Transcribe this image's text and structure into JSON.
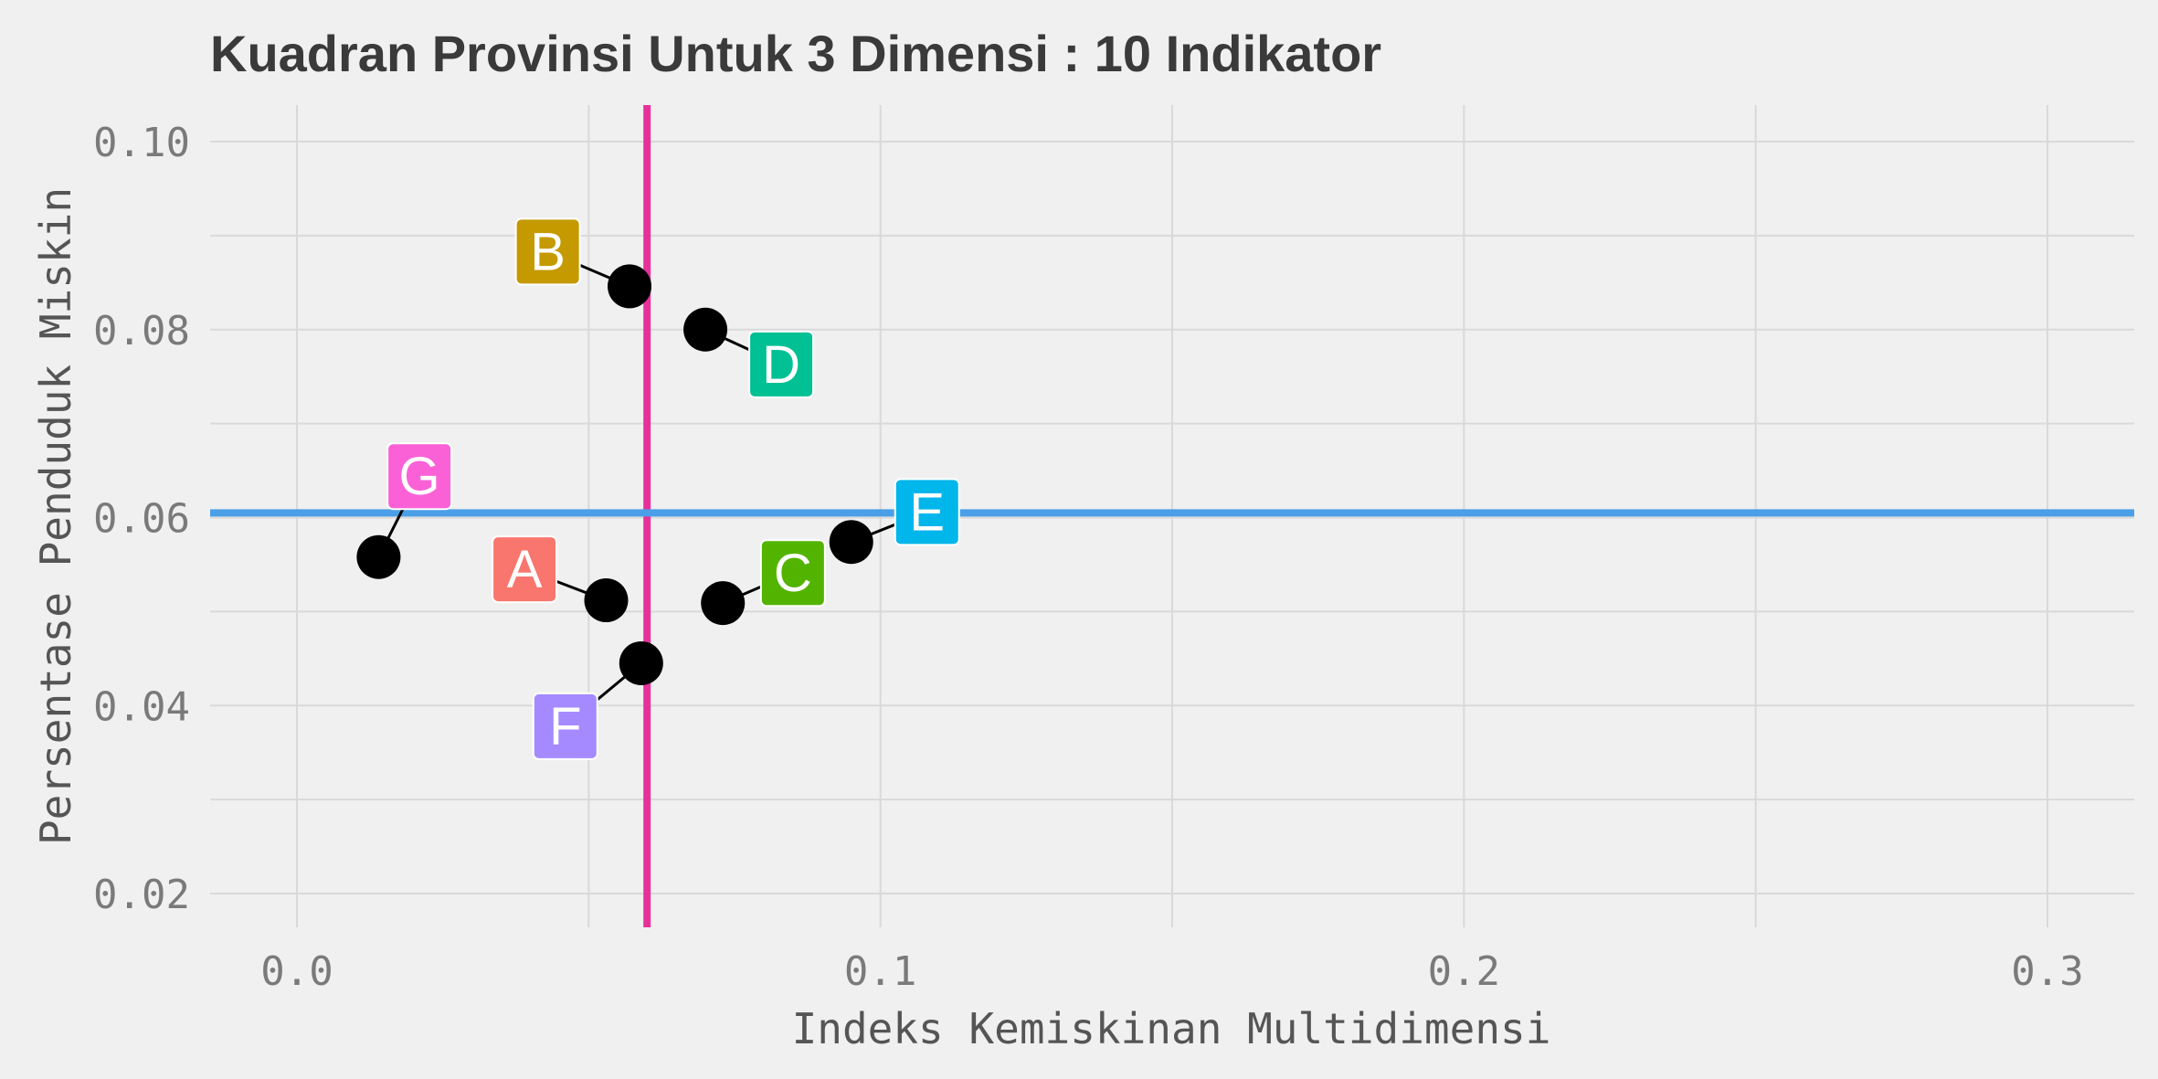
{
  "chart_data": {
    "type": "scatter",
    "title": "Kuadran Provinsi Untuk 3 Dimensi : 10 Indikator",
    "xlabel": "Indeks Kemiskinan Multidimensi",
    "ylabel": "Persentase Penduduk Miskin",
    "xlim": [
      -0.015,
      0.315
    ],
    "ylim": [
      0.0165,
      0.104
    ],
    "x_ticks": [
      0.0,
      0.1,
      0.2,
      0.3
    ],
    "x_tick_labels": [
      "0.0",
      "0.1",
      "0.2",
      "0.3"
    ],
    "y_ticks": [
      0.02,
      0.04,
      0.06,
      0.08,
      0.1
    ],
    "y_tick_labels": [
      "0.02",
      "0.04",
      "0.06",
      "0.08",
      "0.10"
    ],
    "grid": true,
    "reference_lines": [
      {
        "orientation": "vertical",
        "value": 0.06,
        "color": "#e8309b"
      },
      {
        "orientation": "horizontal",
        "value": 0.0605,
        "color": "#4a9fe8"
      }
    ],
    "points": [
      {
        "label": "A",
        "x": 0.053,
        "y": 0.0512,
        "color": "#f8766d",
        "label_x": 0.039,
        "label_y": 0.0545
      },
      {
        "label": "B",
        "x": 0.057,
        "y": 0.0846,
        "color": "#c49a00",
        "label_x": 0.043,
        "label_y": 0.0883
      },
      {
        "label": "C",
        "x": 0.073,
        "y": 0.0509,
        "color": "#53b400",
        "label_x": 0.085,
        "label_y": 0.0541
      },
      {
        "label": "D",
        "x": 0.07,
        "y": 0.08,
        "color": "#00c094",
        "label_x": 0.083,
        "label_y": 0.0763
      },
      {
        "label": "E",
        "x": 0.095,
        "y": 0.0574,
        "color": "#00b6eb",
        "label_x": 0.108,
        "label_y": 0.0606
      },
      {
        "label": "F",
        "x": 0.059,
        "y": 0.0445,
        "color": "#a58aff",
        "label_x": 0.046,
        "label_y": 0.0378
      },
      {
        "label": "G",
        "x": 0.014,
        "y": 0.0558,
        "color": "#fb61d7",
        "label_x": 0.021,
        "label_y": 0.0644
      }
    ]
  }
}
